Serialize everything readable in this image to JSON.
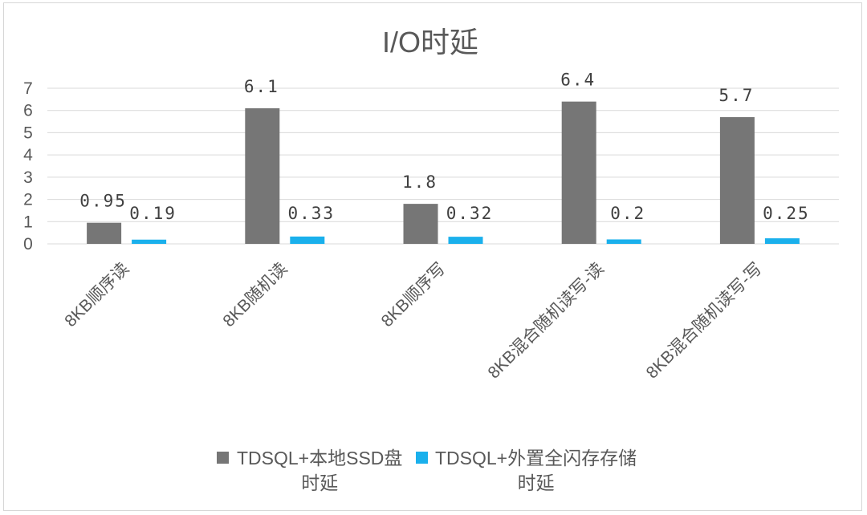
{
  "chart_data": {
    "type": "bar",
    "title": "I/O时延",
    "categories": [
      "8KB顺序读",
      "8KB随机读",
      "8KB顺序写",
      "8KB混合随机读写-读",
      "8KB混合随机读写-写"
    ],
    "series": [
      {
        "name": "TDSQL+本地SSD盘时延",
        "name_lines": [
          "TDSQL+本地SSD盘",
          "时延"
        ],
        "color": "#767676",
        "values": [
          0.95,
          6.1,
          1.8,
          6.4,
          5.7
        ],
        "labels": [
          "0.95",
          "6.1",
          "1.8",
          "6.4",
          "5.7"
        ]
      },
      {
        "name": "TDSQL+外置全闪存存储时延",
        "name_lines": [
          "TDSQL+外置全闪存存储",
          "时延"
        ],
        "color": "#1ab0ec",
        "values": [
          0.19,
          0.33,
          0.32,
          0.2,
          0.25
        ],
        "labels": [
          "0.19",
          "0.33",
          "0.32",
          "0.2",
          "0.25"
        ]
      }
    ],
    "yticks": [
      "0",
      "1",
      "2",
      "3",
      "4",
      "5",
      "6",
      "7"
    ],
    "ylim": [
      0,
      7
    ],
    "grid": true,
    "legend": "bottom"
  }
}
